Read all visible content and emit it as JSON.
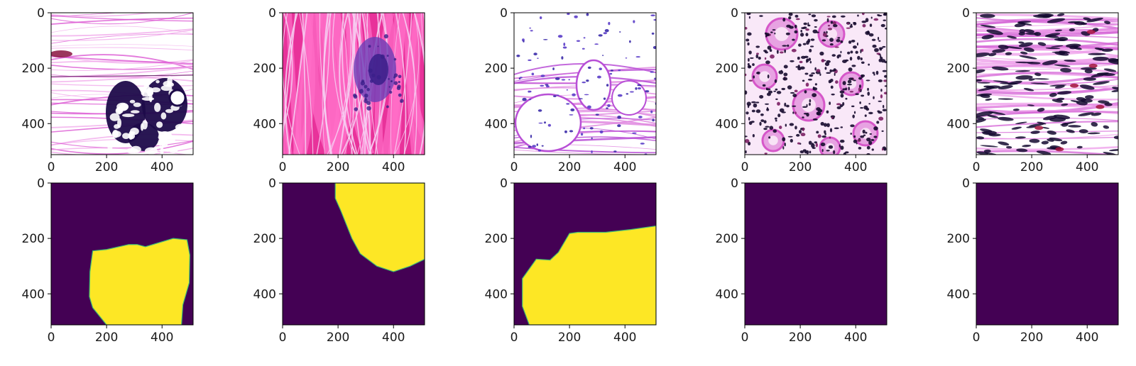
{
  "figure": {
    "rows": 2,
    "cols": 5,
    "tick_labels_x": [
      "0",
      "200",
      "400"
    ],
    "tick_labels_y": [
      "0",
      "200",
      "400"
    ],
    "axis_range": [
      0,
      512
    ],
    "mask_colors": {
      "background": "#440154",
      "foreground": "#fde725",
      "edge": "#3fbc73"
    }
  },
  "panels": [
    {
      "kind": "tissue-image",
      "depicts": "H&E stained tissue with pale pink fibrous stroma and a dark purple lobular gland cluster in the lower right",
      "palette": {
        "base": "#ffffff",
        "stroma": "#f0a6ea",
        "stain": "#d94fd0",
        "nuclei": "#1e0b4a",
        "accent": "#8a1440"
      }
    },
    {
      "kind": "tissue-image",
      "depicts": "H&E stained tissue dominated by bright magenta muscle/collagen bundles with a purple cellular nodule",
      "palette": {
        "base": "#e8329a",
        "stroma": "#ff6ec7",
        "stain": "#f6d0f2",
        "nuclei": "#3a1f8a",
        "accent": "#6b3fb6"
      }
    },
    {
      "kind": "tissue-image",
      "depicts": "H&E stained adipose tissue with large white fat vacuoles and scattered blue-purple nuclei",
      "palette": {
        "base": "#ffffff",
        "stroma": "#e08be0",
        "stain": "#b84fd6",
        "nuclei": "#3a2aa8",
        "accent": "#5a3cc8"
      }
    },
    {
      "kind": "tissue-image",
      "depicts": "H&E stained tissue with round gland structures surrounded by dense dark nuclei",
      "palette": {
        "base": "#ffffff",
        "stroma": "#d657c9",
        "stain": "#e7a2e2",
        "nuclei": "#160b2e",
        "accent": "#7a1f63"
      }
    },
    {
      "kind": "tissue-image",
      "depicts": "H&E stained spindle-cell tissue with elongated dark nuclei in streaming pink stroma",
      "palette": {
        "base": "#ffffff",
        "stroma": "#d463d6",
        "stain": "#ee9ce9",
        "nuclei": "#140a30",
        "accent": "#a3123c"
      }
    },
    {
      "kind": "mask",
      "region": [
        [
          150,
          245
        ],
        [
          200,
          240
        ],
        [
          280,
          222
        ],
        [
          310,
          222
        ],
        [
          340,
          230
        ],
        [
          440,
          200
        ],
        [
          490,
          205
        ],
        [
          500,
          260
        ],
        [
          498,
          360
        ],
        [
          475,
          440
        ],
        [
          470,
          512
        ],
        [
          200,
          512
        ],
        [
          150,
          450
        ],
        [
          138,
          410
        ],
        [
          140,
          320
        ]
      ]
    },
    {
      "kind": "mask",
      "region": [
        [
          190,
          0
        ],
        [
          512,
          0
        ],
        [
          512,
          275
        ],
        [
          460,
          300
        ],
        [
          400,
          320
        ],
        [
          340,
          300
        ],
        [
          280,
          255
        ],
        [
          250,
          200
        ],
        [
          210,
          100
        ],
        [
          190,
          55
        ]
      ]
    },
    {
      "kind": "mask",
      "region": [
        [
          30,
          345
        ],
        [
          80,
          275
        ],
        [
          130,
          278
        ],
        [
          160,
          250
        ],
        [
          200,
          182
        ],
        [
          230,
          178
        ],
        [
          330,
          178
        ],
        [
          420,
          168
        ],
        [
          512,
          155
        ],
        [
          512,
          512
        ],
        [
          55,
          512
        ],
        [
          30,
          445
        ]
      ]
    },
    {
      "kind": "mask",
      "region": []
    },
    {
      "kind": "mask",
      "region": []
    }
  ]
}
